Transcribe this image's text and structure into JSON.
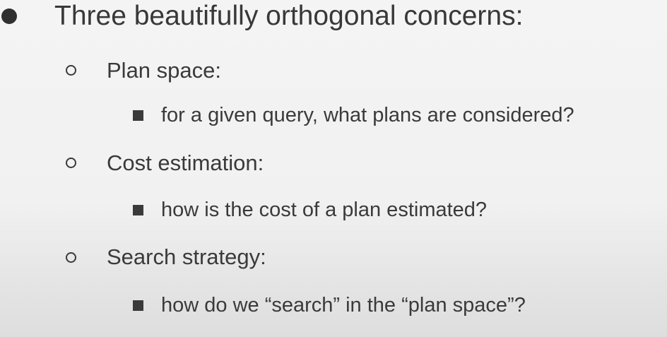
{
  "slide": {
    "heading": "Three beautifully orthogonal concerns:",
    "items": [
      {
        "label": "Plan space:",
        "detail": "for a given query, what plans are considered?"
      },
      {
        "label": "Cost estimation:",
        "detail": "how is the cost of a plan estimated?"
      },
      {
        "label": "Search strategy:",
        "detail": "how do we “search” in the “plan space”?"
      }
    ]
  },
  "colors": {
    "text": "#3a3a3a",
    "background": "#f2f2f2"
  }
}
